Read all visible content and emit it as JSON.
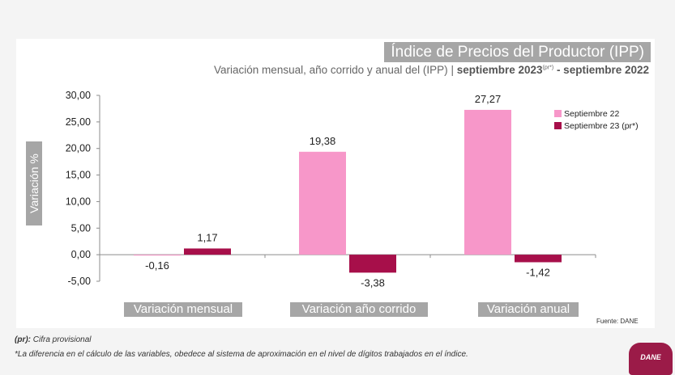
{
  "title": "Índice de Precios del Productor (IPP)",
  "subtitle": {
    "lead": "Variación mensual, año corrido y anual del (IPP)",
    "separator": "|",
    "period_start": "septiembre 2023",
    "period_mark": "(pr*)",
    "period_end": "- septiembre 2022"
  },
  "chart_data": {
    "type": "bar",
    "title": "Índice de Precios del Productor (IPP)",
    "ylabel": "Variación %",
    "xlabel": "",
    "ylim": [
      -5,
      30
    ],
    "yticks": [
      30,
      25,
      20,
      15,
      10,
      5,
      0,
      -5
    ],
    "ytick_labels": [
      "30,00",
      "25,00",
      "20,00",
      "15,00",
      "10,00",
      "5,00",
      "0,00",
      "-5,00"
    ],
    "categories": [
      "Variación mensual",
      "Variación año corrido",
      "Variación anual"
    ],
    "series": [
      {
        "name": "Septiembre 22",
        "color": "#f797c9",
        "values": [
          -0.16,
          19.38,
          27.27
        ],
        "labels": [
          "-0,16",
          "19,38",
          "27,27"
        ]
      },
      {
        "name": "Septiembre 23 (pr*)",
        "color": "#a70f4a",
        "values": [
          1.17,
          -3.38,
          -1.42
        ],
        "labels": [
          "1,17",
          "-3,38",
          "-1,42"
        ]
      }
    ],
    "legend_position": "top-right",
    "grid": false
  },
  "source": "Fuente: DANE",
  "notes": {
    "pr_label": "(pr):",
    "pr_text": "Cifra provisional",
    "footnote": "*La diferencia en el cálculo de las variables, obedece al sistema de aproximación en el nivel de dígitos trabajados en el índice."
  },
  "logo_text": "DANE"
}
